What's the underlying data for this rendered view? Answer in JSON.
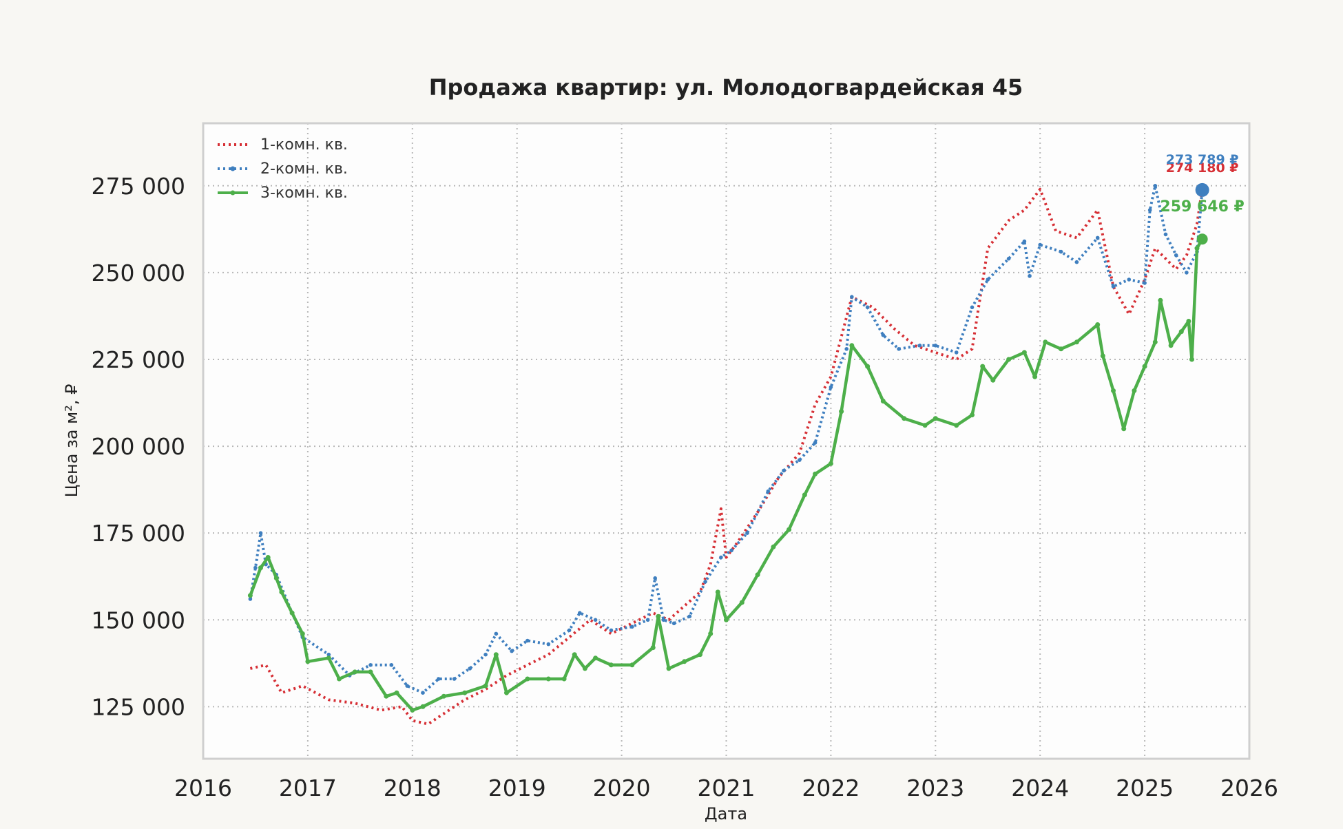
{
  "chart_data": {
    "type": "line",
    "title": "Продажа квартир: ул. Молодогвардейская 45",
    "xlabel": "Дата",
    "ylabel": "Цена за м², ₽",
    "x_ticks": [
      "2016",
      "2017",
      "2018",
      "2019",
      "2020",
      "2021",
      "2022",
      "2023",
      "2024",
      "2025",
      "2026"
    ],
    "y_ticks": [
      "125 000",
      "150 000",
      "175 000",
      "200 000",
      "225 000",
      "250 000",
      "275 000"
    ],
    "y_tick_values": [
      125000,
      150000,
      175000,
      200000,
      225000,
      250000,
      275000
    ],
    "xlim": [
      2016.0,
      2026.0
    ],
    "ylim": [
      110000,
      293000
    ],
    "grid": true,
    "legend_position": "top-left",
    "colors": {
      "background": "#f8f7f3",
      "plot_bg": "#fdfdfd",
      "grid": "#b8b8b8",
      "frame": "#cfcfcf"
    },
    "series": [
      {
        "name": "1-комн. кв.",
        "color": "#d62f35",
        "style": "dotted",
        "last_label": "274 180 ₽",
        "last_value": 274180,
        "x": [
          2016.45,
          2016.6,
          2016.75,
          2016.95,
          2017.2,
          2017.45,
          2017.7,
          2017.9,
          2018.0,
          2018.15,
          2018.35,
          2018.5,
          2018.7,
          2018.9,
          2019.1,
          2019.3,
          2019.5,
          2019.7,
          2019.9,
          2020.1,
          2020.3,
          2020.45,
          2020.6,
          2020.75,
          2020.85,
          2020.95,
          2021.0,
          2021.1,
          2021.3,
          2021.5,
          2021.7,
          2021.85,
          2022.0,
          2022.2,
          2022.4,
          2022.6,
          2022.8,
          2023.0,
          2023.2,
          2023.35,
          2023.5,
          2023.7,
          2023.85,
          2024.0,
          2024.15,
          2024.35,
          2024.55,
          2024.7,
          2024.85,
          2025.0,
          2025.1,
          2025.2,
          2025.3,
          2025.4,
          2025.5,
          2025.55
        ],
        "y": [
          136000,
          137000,
          129000,
          131000,
          127000,
          126000,
          124000,
          125000,
          121000,
          120000,
          124000,
          127000,
          130000,
          134000,
          137000,
          140000,
          145000,
          150000,
          146000,
          149000,
          152000,
          150000,
          154000,
          158000,
          166000,
          182000,
          168000,
          172000,
          181000,
          191000,
          198000,
          212000,
          220000,
          243000,
          240000,
          234000,
          229000,
          227000,
          225000,
          228000,
          257000,
          265000,
          268000,
          274000,
          262000,
          260000,
          268000,
          246000,
          238000,
          248000,
          257000,
          254000,
          251000,
          255000,
          264000,
          274180
        ]
      },
      {
        "name": "2-комн. кв.",
        "color": "#3f7fbf",
        "style": "dotted-markers",
        "last_label": "273 789 ₽",
        "last_value": 273789,
        "x": [
          2016.45,
          2016.5,
          2016.55,
          2016.6,
          2016.7,
          2016.85,
          2016.95,
          2017.2,
          2017.4,
          2017.6,
          2017.8,
          2017.95,
          2018.1,
          2018.25,
          2018.4,
          2018.55,
          2018.7,
          2018.8,
          2018.95,
          2019.1,
          2019.3,
          2019.5,
          2019.6,
          2019.75,
          2019.9,
          2020.1,
          2020.25,
          2020.32,
          2020.4,
          2020.5,
          2020.65,
          2020.8,
          2020.95,
          2021.05,
          2021.2,
          2021.4,
          2021.55,
          2021.7,
          2021.85,
          2022.0,
          2022.15,
          2022.2,
          2022.35,
          2022.5,
          2022.65,
          2022.85,
          2023.0,
          2023.2,
          2023.35,
          2023.5,
          2023.7,
          2023.85,
          2023.9,
          2024.0,
          2024.2,
          2024.35,
          2024.55,
          2024.7,
          2024.85,
          2025.0,
          2025.05,
          2025.1,
          2025.2,
          2025.3,
          2025.4,
          2025.5,
          2025.55
        ],
        "y": [
          156000,
          165000,
          175000,
          166000,
          163000,
          152000,
          145000,
          140000,
          134000,
          137000,
          137000,
          131000,
          129000,
          133000,
          133000,
          136000,
          140000,
          146000,
          141000,
          144000,
          143000,
          147000,
          152000,
          150000,
          147000,
          148000,
          150000,
          162000,
          150000,
          149000,
          151000,
          161000,
          168000,
          170000,
          175000,
          187000,
          193000,
          196000,
          201000,
          217000,
          228000,
          243000,
          240000,
          232000,
          228000,
          229000,
          229000,
          227000,
          240000,
          248000,
          254000,
          259000,
          249000,
          258000,
          256000,
          253000,
          260000,
          246000,
          248000,
          247000,
          268000,
          275000,
          261000,
          255000,
          250000,
          256000,
          273789
        ]
      },
      {
        "name": "3-комн. кв.",
        "color": "#4daf4a",
        "style": "solid-markers",
        "last_label": "259 646 ₽",
        "last_value": 259646,
        "x": [
          2016.45,
          2016.55,
          2016.62,
          2016.7,
          2016.75,
          2016.85,
          2016.95,
          2017.0,
          2017.2,
          2017.3,
          2017.45,
          2017.6,
          2017.75,
          2017.85,
          2018.0,
          2018.1,
          2018.3,
          2018.5,
          2018.7,
          2018.8,
          2018.9,
          2019.1,
          2019.3,
          2019.45,
          2019.55,
          2019.65,
          2019.75,
          2019.9,
          2020.1,
          2020.3,
          2020.35,
          2020.45,
          2020.6,
          2020.75,
          2020.85,
          2020.92,
          2021.0,
          2021.15,
          2021.3,
          2021.45,
          2021.6,
          2021.75,
          2021.85,
          2022.0,
          2022.1,
          2022.2,
          2022.35,
          2022.5,
          2022.7,
          2022.9,
          2023.0,
          2023.2,
          2023.35,
          2023.45,
          2023.55,
          2023.7,
          2023.85,
          2023.95,
          2024.05,
          2024.2,
          2024.35,
          2024.55,
          2024.6,
          2024.7,
          2024.8,
          2024.9,
          2025.0,
          2025.1,
          2025.15,
          2025.25,
          2025.35,
          2025.42,
          2025.45,
          2025.5,
          2025.55
        ],
        "y": [
          157000,
          165000,
          168000,
          162000,
          158000,
          152000,
          146000,
          138000,
          139000,
          133000,
          135000,
          135000,
          128000,
          129000,
          124000,
          125000,
          128000,
          129000,
          131000,
          140000,
          129000,
          133000,
          133000,
          133000,
          140000,
          136000,
          139000,
          137000,
          137000,
          142000,
          151000,
          136000,
          138000,
          140000,
          146000,
          158000,
          150000,
          155000,
          163000,
          171000,
          176000,
          186000,
          192000,
          195000,
          210000,
          229000,
          223000,
          213000,
          208000,
          206000,
          208000,
          206000,
          209000,
          223000,
          219000,
          225000,
          227000,
          220000,
          230000,
          228000,
          230000,
          235000,
          226000,
          216000,
          205000,
          216000,
          223000,
          230000,
          242000,
          229000,
          233000,
          236000,
          225000,
          257000,
          259646
        ]
      }
    ]
  }
}
